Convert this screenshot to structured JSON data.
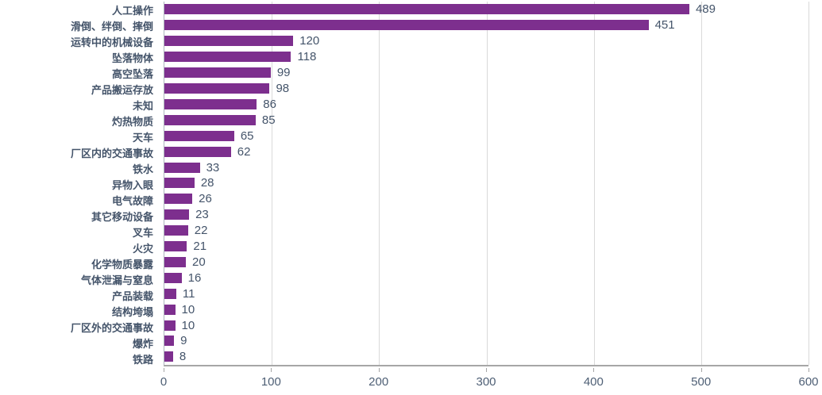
{
  "chart_data": {
    "type": "bar",
    "orientation": "horizontal",
    "title": "",
    "xlabel": "",
    "ylabel": "",
    "categories": [
      "人工操作",
      "滑倒、绊倒、摔倒",
      "运转中的机械设备",
      "坠落物体",
      "高空坠落",
      "产品搬运存放",
      "未知",
      "灼热物质",
      "天车",
      "厂区内的交通事故",
      "铁水",
      "异物入眼",
      "电气故障",
      "其它移动设备",
      "叉车",
      "火灾",
      "化学物质暴露",
      "气体泄漏与窒息",
      "产品装载",
      "结构垮塌",
      "厂区外的交通事故",
      "爆炸",
      "铁路"
    ],
    "values": [
      489,
      451,
      120,
      118,
      99,
      98,
      86,
      85,
      65,
      62,
      33,
      28,
      26,
      23,
      22,
      21,
      20,
      16,
      11,
      10,
      10,
      9,
      8
    ],
    "data_labels": [
      489,
      451,
      120,
      118,
      99,
      98,
      86,
      85,
      65,
      62,
      33,
      28,
      26,
      23,
      22,
      21,
      20,
      16,
      11,
      10,
      10,
      9,
      8
    ],
    "xlim": [
      0,
      600
    ],
    "x_ticks": [
      0,
      100,
      200,
      300,
      400,
      500,
      600
    ],
    "grid": "vertical",
    "legend": "none",
    "colors": {
      "bar": "#7D2F8E",
      "category_label_text": "#44546A",
      "value_label_text": "#44546A",
      "tick_label_text": "#4E5F75",
      "gridline": "#D9D9D9",
      "axis_line": "#A6A6A6",
      "background": "#FFFFFF"
    }
  }
}
